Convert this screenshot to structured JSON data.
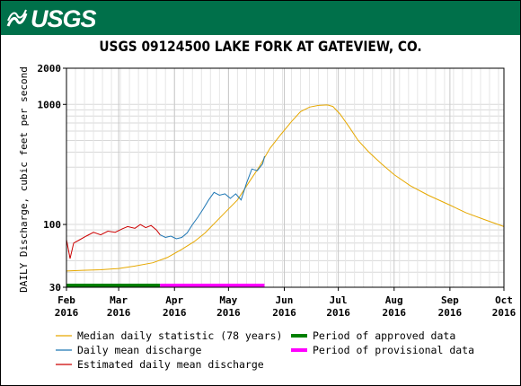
{
  "header": {
    "logo_text": "USGS",
    "logo_icon": "usgs-wave-icon",
    "banner_color": "#00704a"
  },
  "chart_data": {
    "type": "line",
    "title": "USGS 09124500 LAKE FORK AT GATEVIEW, CO.",
    "ylabel": "DAILY Discharge, cubic feet per second",
    "xlabel": "",
    "yscale": "log",
    "ylim": [
      30,
      2000
    ],
    "xlim": [
      "2016-02-01",
      "2016-10-01"
    ],
    "grid": true,
    "x_ticks": [
      {
        "date": "2016-02-01",
        "month": "Feb",
        "year": "2016"
      },
      {
        "date": "2016-03-01",
        "month": "Mar",
        "year": "2016"
      },
      {
        "date": "2016-04-01",
        "month": "Apr",
        "year": "2016"
      },
      {
        "date": "2016-05-01",
        "month": "May",
        "year": "2016"
      },
      {
        "date": "2016-06-01",
        "month": "Jun",
        "year": "2016"
      },
      {
        "date": "2016-07-01",
        "month": "Jul",
        "year": "2016"
      },
      {
        "date": "2016-08-01",
        "month": "Aug",
        "year": "2016"
      },
      {
        "date": "2016-09-01",
        "month": "Sep",
        "year": "2016"
      },
      {
        "date": "2016-10-01",
        "month": "Oct",
        "year": "2016"
      }
    ],
    "y_ticks": [
      "30",
      "100",
      "1000",
      "2000"
    ],
    "legend_position": "bottom",
    "series": [
      {
        "name": "Median daily statistic (78 years)",
        "color": "#e6a800",
        "points": [
          [
            "2016-02-01",
            41
          ],
          [
            "2016-02-10",
            41.5
          ],
          [
            "2016-02-20",
            42
          ],
          [
            "2016-03-01",
            43
          ],
          [
            "2016-03-10",
            45
          ],
          [
            "2016-03-20",
            48
          ],
          [
            "2016-03-28",
            53
          ],
          [
            "2016-04-05",
            62
          ],
          [
            "2016-04-12",
            72
          ],
          [
            "2016-04-18",
            85
          ],
          [
            "2016-04-24",
            105
          ],
          [
            "2016-04-30",
            130
          ],
          [
            "2016-05-06",
            160
          ],
          [
            "2016-05-12",
            220
          ],
          [
            "2016-05-18",
            300
          ],
          [
            "2016-05-24",
            430
          ],
          [
            "2016-05-30",
            560
          ],
          [
            "2016-06-05",
            720
          ],
          [
            "2016-06-10",
            870
          ],
          [
            "2016-06-15",
            950
          ],
          [
            "2016-06-20",
            980
          ],
          [
            "2016-06-25",
            990
          ],
          [
            "2016-06-28",
            960
          ],
          [
            "2016-07-02",
            830
          ],
          [
            "2016-07-07",
            650
          ],
          [
            "2016-07-12",
            500
          ],
          [
            "2016-07-18",
            400
          ],
          [
            "2016-07-25",
            320
          ],
          [
            "2016-08-01",
            260
          ],
          [
            "2016-08-10",
            210
          ],
          [
            "2016-08-20",
            175
          ],
          [
            "2016-09-01",
            145
          ],
          [
            "2016-09-10",
            125
          ],
          [
            "2016-09-20",
            110
          ],
          [
            "2016-10-01",
            96
          ]
        ]
      },
      {
        "name": "Daily mean discharge",
        "color": "#1f77b4",
        "points": [
          [
            "2016-03-24",
            82
          ],
          [
            "2016-03-27",
            78
          ],
          [
            "2016-03-30",
            80
          ],
          [
            "2016-04-02",
            76
          ],
          [
            "2016-04-05",
            78
          ],
          [
            "2016-04-08",
            85
          ],
          [
            "2016-04-11",
            100
          ],
          [
            "2016-04-14",
            115
          ],
          [
            "2016-04-17",
            135
          ],
          [
            "2016-04-20",
            160
          ],
          [
            "2016-04-23",
            185
          ],
          [
            "2016-04-26",
            175
          ],
          [
            "2016-04-29",
            180
          ],
          [
            "2016-05-02",
            165
          ],
          [
            "2016-05-05",
            180
          ],
          [
            "2016-05-08",
            160
          ],
          [
            "2016-05-11",
            220
          ],
          [
            "2016-05-14",
            290
          ],
          [
            "2016-05-17",
            280
          ],
          [
            "2016-05-20",
            320
          ],
          [
            "2016-05-21",
            370
          ]
        ]
      },
      {
        "name": "Estimated daily mean discharge",
        "color": "#cc0000",
        "points": [
          [
            "2016-02-01",
            75
          ],
          [
            "2016-02-03",
            52
          ],
          [
            "2016-02-05",
            70
          ],
          [
            "2016-02-08",
            74
          ],
          [
            "2016-02-12",
            80
          ],
          [
            "2016-02-16",
            86
          ],
          [
            "2016-02-20",
            82
          ],
          [
            "2016-02-24",
            88
          ],
          [
            "2016-02-28",
            86
          ],
          [
            "2016-03-03",
            92
          ],
          [
            "2016-03-06",
            96
          ],
          [
            "2016-03-10",
            93
          ],
          [
            "2016-03-13",
            100
          ],
          [
            "2016-03-16",
            94
          ],
          [
            "2016-03-19",
            98
          ],
          [
            "2016-03-22",
            90
          ],
          [
            "2016-03-24",
            82
          ]
        ]
      }
    ],
    "periods": [
      {
        "name": "Period of approved data",
        "color": "#008000",
        "start": "2016-02-01",
        "end": "2016-03-24"
      },
      {
        "name": "Period of provisional data",
        "color": "#ff00ff",
        "start": "2016-03-24",
        "end": "2016-05-21"
      }
    ]
  }
}
